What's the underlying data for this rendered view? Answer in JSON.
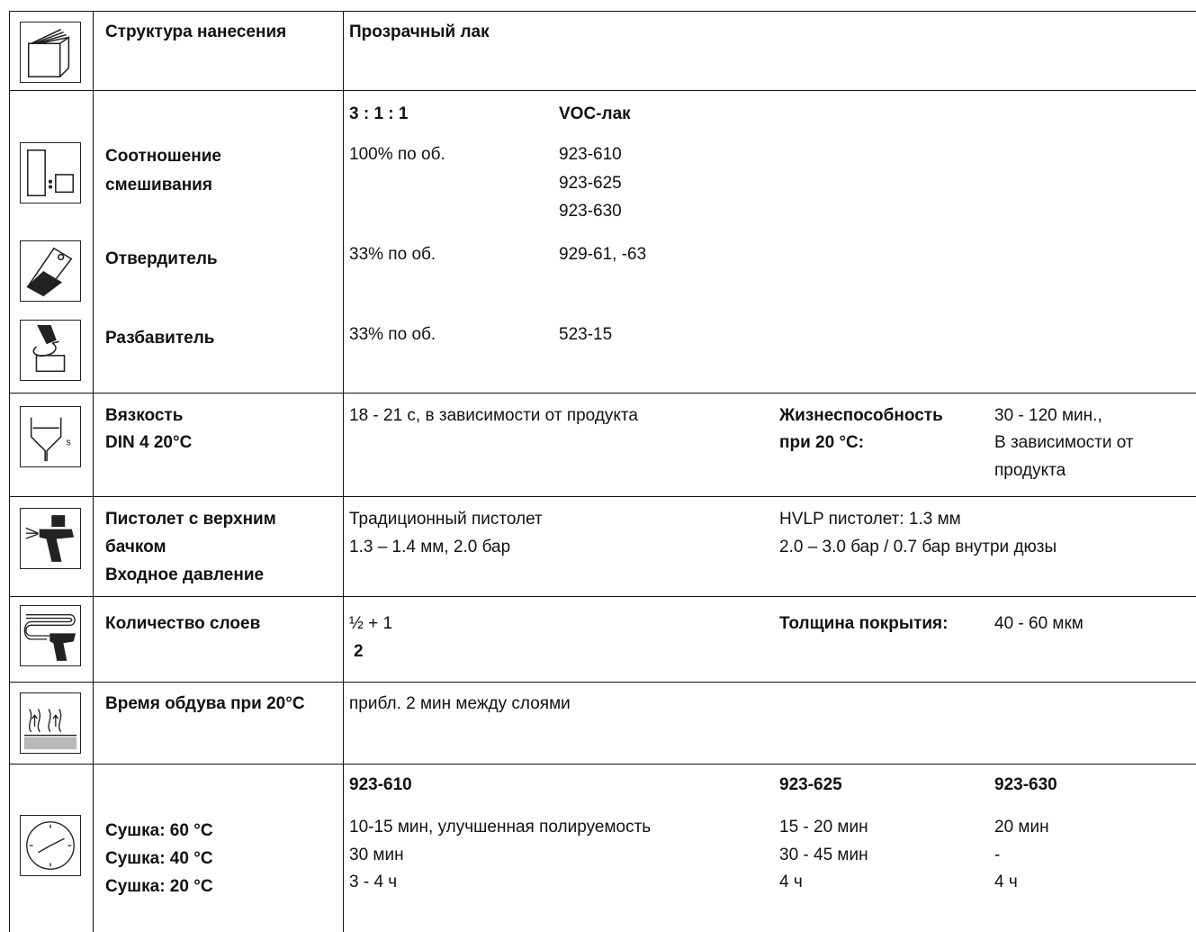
{
  "structure": {
    "label": "Структура нанесения",
    "value": "Прозрачный лак"
  },
  "mixing": {
    "ratio_header": "3 : 1 : 1",
    "voc_header": "VOC-лак",
    "label_line1": "Соотношение",
    "label_line2": "смешивания",
    "amount": "100% по об.",
    "products": [
      "923-610",
      "923-625",
      "923-630"
    ]
  },
  "hardener": {
    "label": "Отвердитель",
    "amount": "33% по об.",
    "product": "929-61, -63"
  },
  "thinner": {
    "label": "Разбавитель",
    "amount": "33% по об.",
    "product": "523-15"
  },
  "viscosity": {
    "label_line1": "Вязкость",
    "label_line2": "DIN 4 20°C",
    "value": "18 - 21 с, в зависимости от продукта",
    "potlife_label_line1": "Жизнеспособность",
    "potlife_label_line2": "при 20 °C:",
    "potlife_value_line1": "30 - 120 мин.,",
    "potlife_value_line2": "В зависимости от",
    "potlife_value_line3": "продукта"
  },
  "spraygun": {
    "label_line1": "Пистолет с верхним",
    "label_line2": "бачком",
    "label_line3": "Входное давление",
    "conventional_line1": "Традиционный пистолет",
    "conventional_line2": "1.3 – 1.4 мм, 2.0 бар",
    "hvlp_line1": "HVLP пистолет: 1.3 мм",
    "hvlp_line2": "2.0 – 3.0 бар / 0.7 бар внутри дюзы"
  },
  "coats": {
    "label": "Количество слоев",
    "value_line1": "½ + 1",
    "value_line2": "2",
    "thickness_label": "Толщина покрытия:",
    "thickness_value": "40 - 60 мкм"
  },
  "flash": {
    "label": "Время обдува при 20°C",
    "value": "прибл. 2 мин между слоями"
  },
  "drying": {
    "headers": [
      "923-610",
      "923-625",
      "923-630"
    ],
    "labels": [
      "Сушка: 60 °C",
      "Сушка: 40 °C",
      "Сушка: 20 °C"
    ],
    "col1": [
      "10-15 мин, улучшенная полируемость",
      "30 мин",
      "3 - 4 ч"
    ],
    "col2": [
      "15 - 20 мин",
      "30 - 45 мин",
      "4 ч"
    ],
    "col3": [
      "20 мин",
      "-",
      "4 ч"
    ]
  },
  "icons": [
    "layers-book-icon",
    "mixing-ratio-icon",
    "hardener-tube-icon",
    "thinner-pour-icon",
    "viscosity-cup-icon",
    "spray-gun-icon",
    "spray-coats-icon",
    "flash-off-heat-icon",
    "clock-icon"
  ]
}
